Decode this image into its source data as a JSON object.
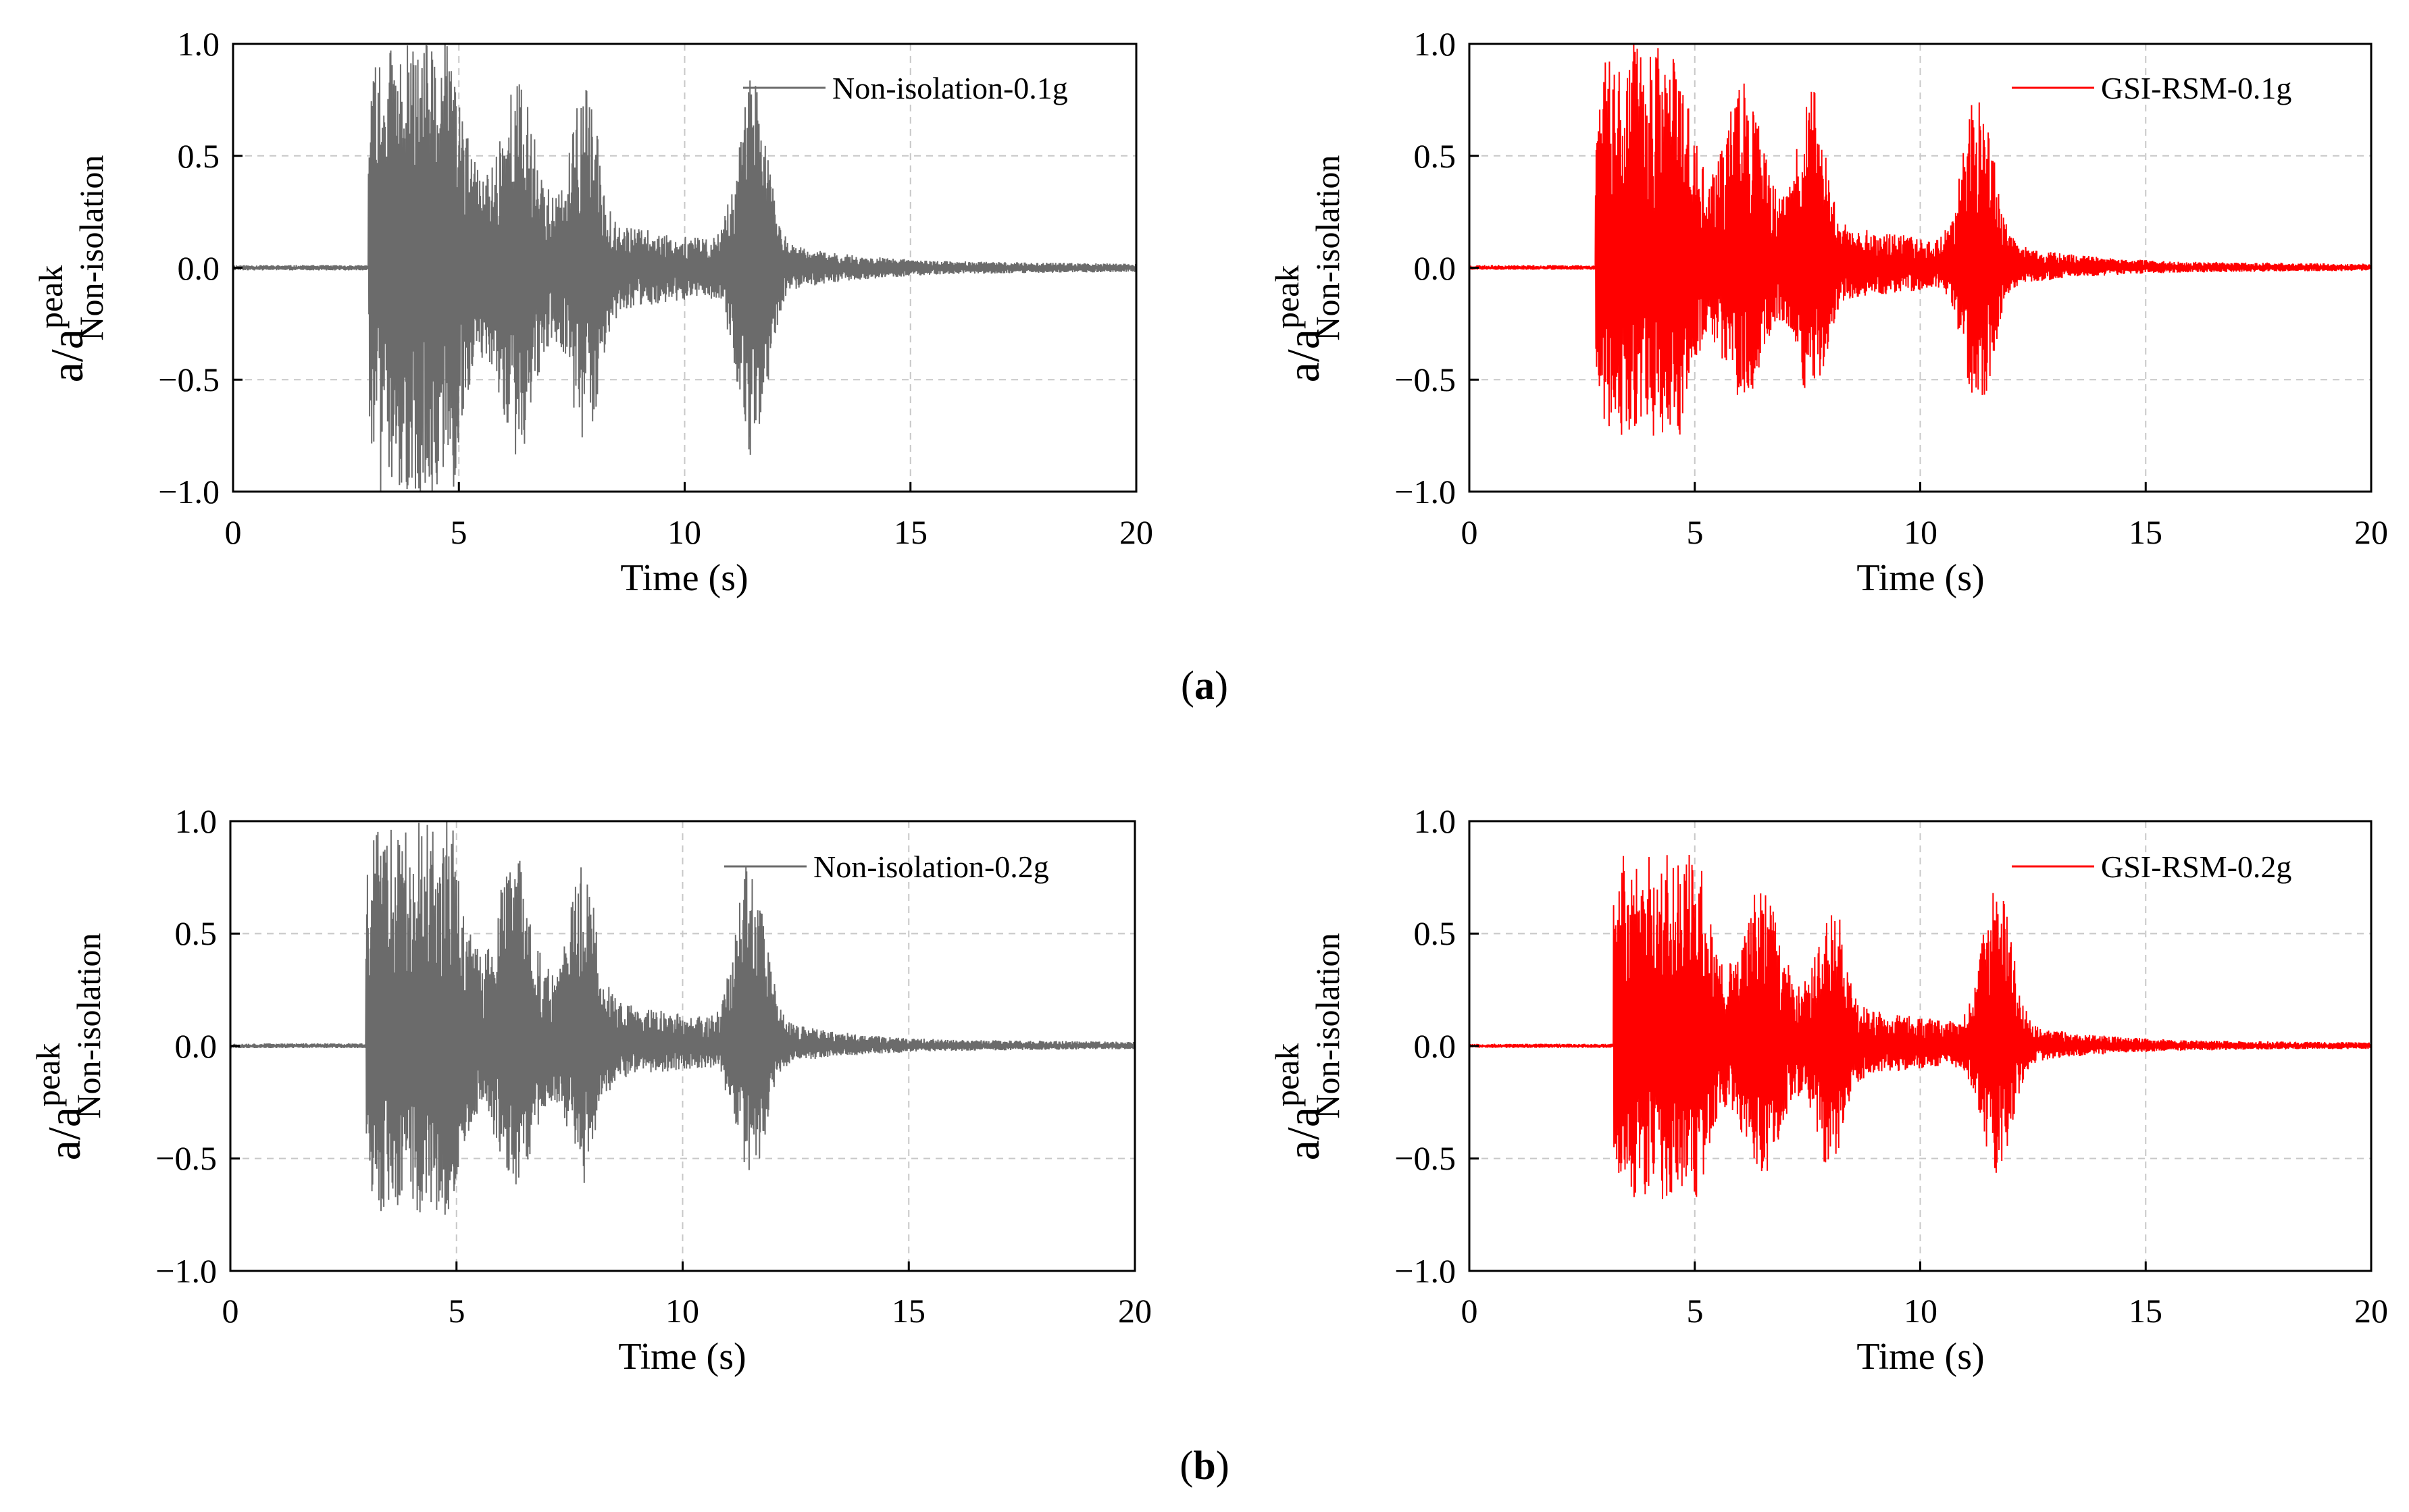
{
  "chart_data": [
    {
      "type": "line",
      "series": [
        {
          "name": "Non-isolation-0.1g",
          "color": "#6b6b6b",
          "peak_pos": 1.0,
          "peak_neg": -1.0,
          "onset_s": 3.0,
          "seed": 11
        }
      ],
      "xlabel": "Time (s)",
      "ylabel": {
        "main": "a/a",
        "sup": "peak",
        "sub": "Non-isolation"
      },
      "xlim": [
        0,
        20
      ],
      "ylim": [
        -1.0,
        1.0
      ],
      "xticks": [
        "0",
        "5",
        "10",
        "15",
        "20"
      ],
      "yticks": [
        "1.0",
        "0.5",
        "0.0",
        "−0.5",
        "−1.0"
      ],
      "grid": true,
      "legend": "top-right"
    },
    {
      "type": "line",
      "series": [
        {
          "name": "GSI-RSM-0.1g",
          "color": "#ff0000",
          "peak_pos": 1.0,
          "peak_neg": -0.75,
          "onset_s": 2.8,
          "seed": 23
        }
      ],
      "xlabel": "Time (s)",
      "ylabel": {
        "main": "a/a",
        "sup": "peak",
        "sub": "Non-isolation"
      },
      "xlim": [
        0,
        20
      ],
      "ylim": [
        -1.0,
        1.0
      ],
      "xticks": [
        "0",
        "5",
        "10",
        "15",
        "20"
      ],
      "yticks": [
        "1.0",
        "0.5",
        "0.0",
        "−0.5",
        "−1.0"
      ],
      "grid": true,
      "legend": "top-right"
    },
    {
      "type": "line",
      "series": [
        {
          "name": "Non-isolation-0.2g",
          "color": "#6b6b6b",
          "peak_pos": 1.0,
          "peak_neg": -0.75,
          "onset_s": 3.0,
          "seed": 37
        }
      ],
      "xlabel": "Time (s)",
      "ylabel": {
        "main": "a/a",
        "sup": "peak",
        "sub": "Non-isolation"
      },
      "xlim": [
        0,
        20
      ],
      "ylim": [
        -1.0,
        1.0
      ],
      "xticks": [
        "0",
        "5",
        "10",
        "15",
        "20"
      ],
      "yticks": [
        "1.0",
        "0.5",
        "0.0",
        "−0.5",
        "−1.0"
      ],
      "grid": true,
      "legend": "top-right"
    },
    {
      "type": "line",
      "series": [
        {
          "name": "GSI-RSM-0.2g",
          "color": "#ff0000",
          "peak_pos": 0.85,
          "peak_neg": -0.68,
          "onset_s": 3.2,
          "seed": 53
        }
      ],
      "xlabel": "Time (s)",
      "ylabel": {
        "main": "a/a",
        "sup": "peak",
        "sub": "Non-isolation"
      },
      "xlim": [
        0,
        20
      ],
      "ylim": [
        -1.0,
        1.0
      ],
      "xticks": [
        "0",
        "5",
        "10",
        "15",
        "20"
      ],
      "yticks": [
        "1.0",
        "0.5",
        "0.0",
        "−0.5",
        "−1.0"
      ],
      "grid": true,
      "legend": "top-right"
    }
  ],
  "captions": [
    {
      "open": "(",
      "letter": "a",
      "close": ")"
    },
    {
      "open": "(",
      "letter": "b",
      "close": ")"
    }
  ]
}
